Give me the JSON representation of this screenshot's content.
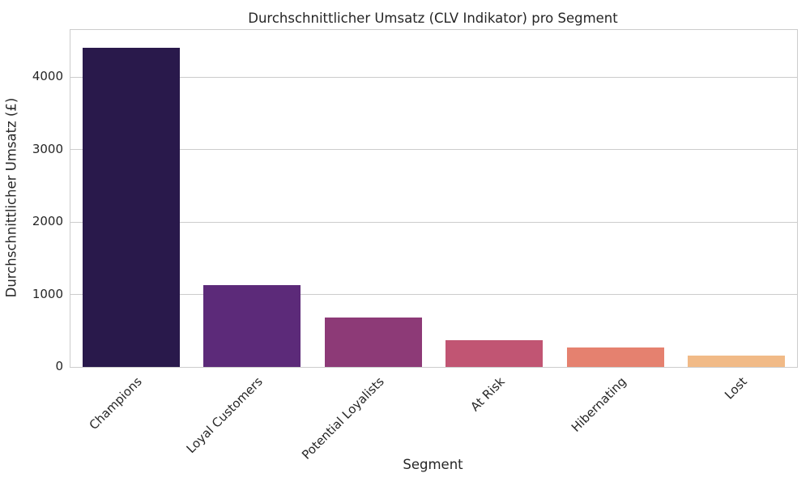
{
  "chart_data": {
    "type": "bar",
    "title": "Durchschnittlicher Umsatz (CLV Indikator) pro Segment",
    "xlabel": "Segment",
    "ylabel": "Durchschnittlicher Umsatz (£)",
    "categories": [
      "Champions",
      "Loyal Customers",
      "Potential Loyalists",
      "At Risk",
      "Hibernating",
      "Lost"
    ],
    "values": [
      4400,
      1125,
      680,
      365,
      265,
      160
    ],
    "bar_colors": [
      "#29194b",
      "#5c2a79",
      "#8d3a77",
      "#c15573",
      "#e5816f",
      "#f1ba87"
    ],
    "yticks": [
      0,
      1000,
      2000,
      3000,
      4000
    ],
    "ylim": [
      0,
      4650
    ],
    "grid": true,
    "grid_color": "#cccccc",
    "text_color": "#262626",
    "background": "#ffffff",
    "legend": null,
    "bar_width_fraction": 0.8,
    "x_tick_rotation_deg": 45
  }
}
